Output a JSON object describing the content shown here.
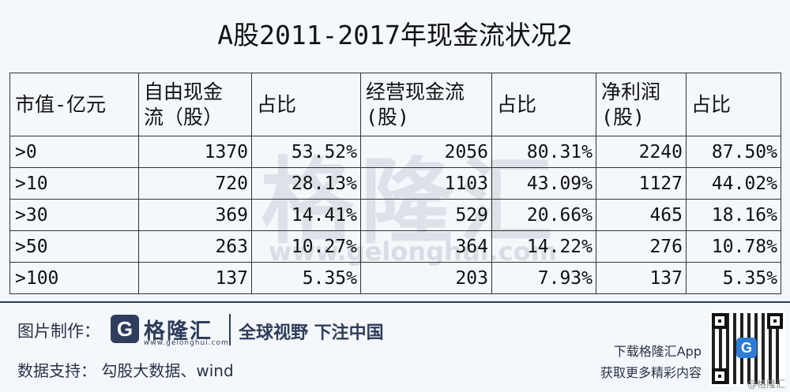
{
  "title": "A股2011-2017年现金流状况2",
  "watermark": {
    "text": "格隆汇",
    "url": "www.gelonghui.com"
  },
  "table": {
    "headers": [
      "市值-亿元",
      "自由现金\n流（股）",
      "占比",
      "经营现金流\n(股)",
      "占比",
      "净利润\n(股)",
      "占比"
    ],
    "rows": [
      [
        ">0",
        "1370",
        "53.52%",
        "2056",
        "80.31%",
        "2240",
        "87.50%"
      ],
      [
        ">10",
        "720",
        "28.13%",
        "1103",
        "43.09%",
        "1127",
        "44.02%"
      ],
      [
        ">30",
        "369",
        "14.41%",
        "529",
        "20.66%",
        "465",
        "18.16%"
      ],
      [
        ">50",
        "263",
        "10.27%",
        "364",
        "14.22%",
        "276",
        "10.78%"
      ],
      [
        ">100",
        "137",
        "5.35%",
        "203",
        "7.93%",
        "137",
        "5.35%"
      ]
    ]
  },
  "footer": {
    "made_by_label": "图片制作：",
    "logo_letter": "G",
    "logo_name": "格隆汇",
    "logo_url": "www.gelonghui.com",
    "slogan": "全球视野 下注中国",
    "data_support": "数据支持： 勾股大数据、wind",
    "download_line1": "下载格隆汇App",
    "download_line2": "获取更多精彩内容",
    "qr_badge": "G",
    "credit": "@格隆汇"
  },
  "colors": {
    "brand": "#2f3d5c",
    "background": "#f4f7fc",
    "qr_badge": "#2e7cd6"
  }
}
